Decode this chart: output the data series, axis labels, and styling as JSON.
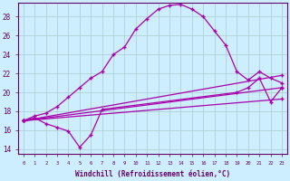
{
  "background_color": "#cceeff",
  "grid_color": "#aacccc",
  "line_color": "#aa00aa",
  "xlim": [
    -0.5,
    23.5
  ],
  "ylim": [
    13.5,
    29.5
  ],
  "xtick_labels": [
    "0",
    "1",
    "2",
    "3",
    "4",
    "5",
    "6",
    "7",
    "8",
    "9",
    "10",
    "11",
    "12",
    "13",
    "14",
    "15",
    "16",
    "17",
    "18",
    "19",
    "20",
    "21",
    "22",
    "23"
  ],
  "ytick_values": [
    14,
    16,
    18,
    20,
    22,
    24,
    26,
    28
  ],
  "xlabel": "Windchill (Refroidissement éolien,°C)",
  "series_main_x": [
    0,
    1,
    2,
    3,
    4,
    5,
    6,
    7,
    8,
    9,
    10,
    11,
    12,
    13,
    14,
    15,
    16,
    17,
    18,
    19,
    20,
    21,
    22,
    23
  ],
  "series_main_y": [
    17.0,
    17.5,
    17.8,
    18.5,
    19.5,
    20.5,
    21.5,
    22.2,
    24.0,
    24.8,
    26.7,
    27.8,
    28.8,
    29.2,
    29.3,
    28.8,
    28.0,
    26.5,
    25.0,
    22.2,
    21.3,
    22.2,
    21.5,
    21.0
  ],
  "series_dip_x": [
    0,
    1,
    2,
    3,
    4,
    5,
    6,
    7,
    19,
    20,
    21,
    22,
    23
  ],
  "series_dip_y": [
    17.0,
    17.3,
    16.7,
    16.3,
    15.9,
    14.2,
    15.5,
    18.2,
    20.0,
    20.5,
    21.5,
    19.0,
    20.5
  ],
  "series_line1_x": [
    0,
    23
  ],
  "series_line1_y": [
    17.0,
    21.8
  ],
  "series_line2_x": [
    0,
    23
  ],
  "series_line2_y": [
    17.0,
    20.5
  ],
  "series_line3_x": [
    0,
    23
  ],
  "series_line3_y": [
    17.0,
    19.3
  ]
}
